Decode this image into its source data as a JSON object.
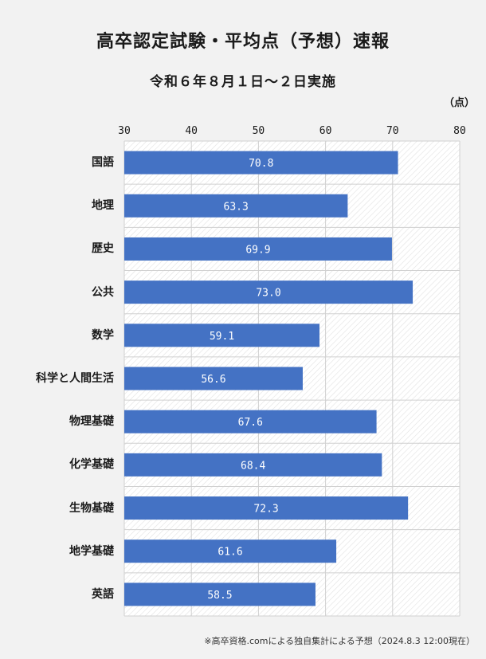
{
  "header": {
    "title": "高卒認定試験・平均点（予想）速報",
    "subtitle": "令和６年８月１日〜２日実施",
    "unit": "（点）"
  },
  "footer": {
    "note": "※高卒資格.comによる独自集計による予想（2024.8.3 12:00現在）"
  },
  "colors": {
    "bar": "#4472c4",
    "grid": "#d0d0d0"
  },
  "chart_data": {
    "type": "bar",
    "orientation": "horizontal",
    "categories": [
      "国語",
      "地理",
      "歴史",
      "公共",
      "数学",
      "科学と人間生活",
      "物理基礎",
      "化学基礎",
      "生物基礎",
      "地学基礎",
      "英語"
    ],
    "values": [
      70.8,
      63.3,
      69.9,
      73.0,
      59.1,
      56.6,
      67.6,
      68.4,
      72.3,
      61.6,
      58.5
    ],
    "value_labels": [
      "70.8",
      "63.3",
      "69.9",
      "73.0",
      "59.1",
      "56.6",
      "67.6",
      "68.4",
      "72.3",
      "61.6",
      "58.5"
    ],
    "xlim": [
      30,
      80
    ],
    "xticks": [
      "30",
      "40",
      "50",
      "60",
      "70",
      "80"
    ],
    "grid": true
  }
}
